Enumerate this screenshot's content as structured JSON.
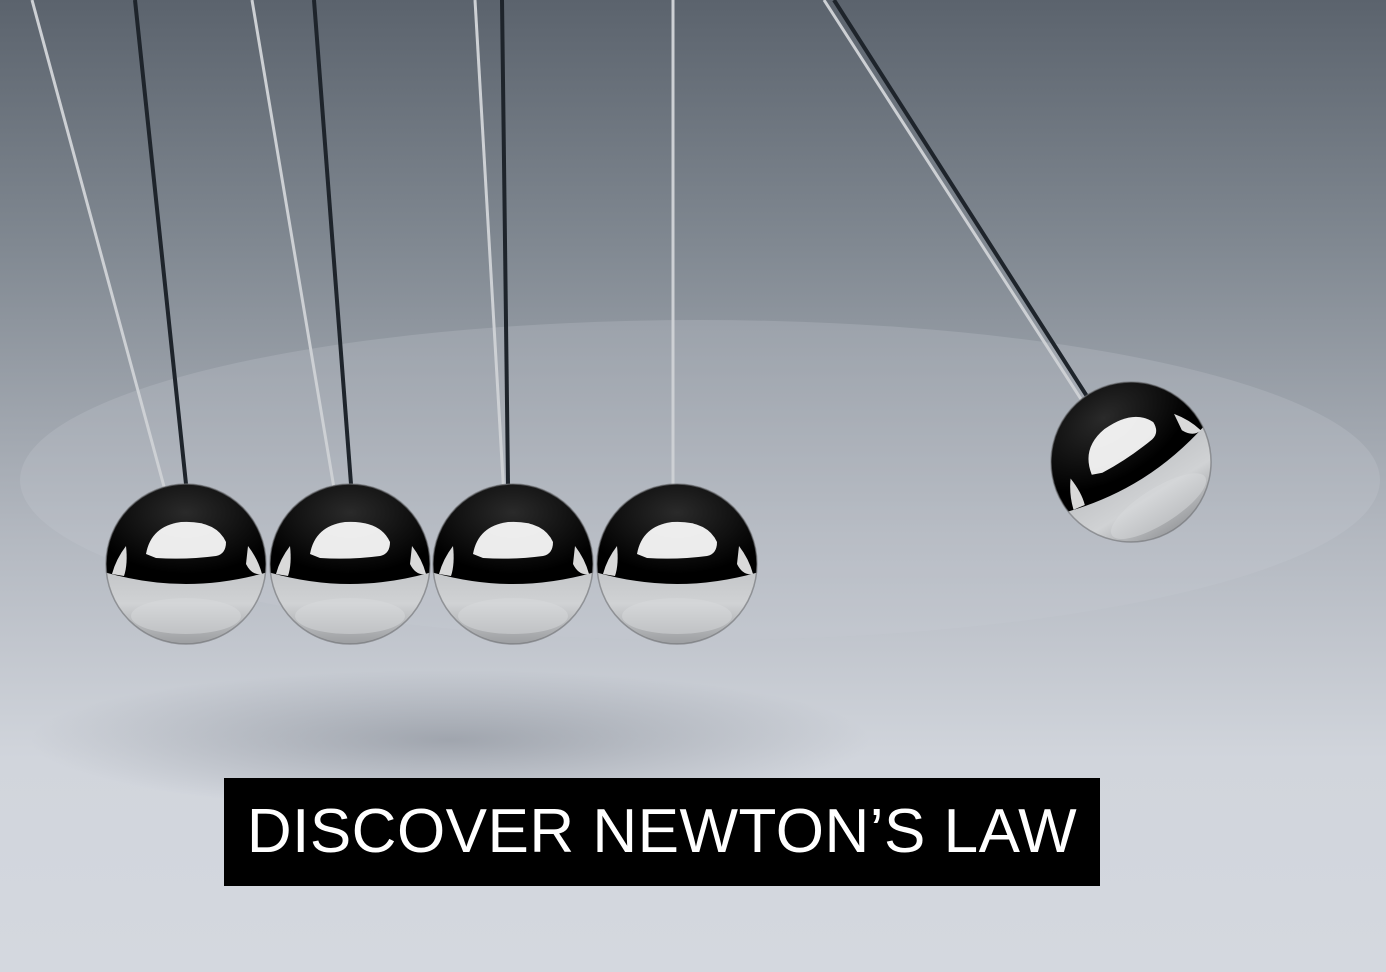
{
  "caption": {
    "text": "DISCOVER NEWTON’S LAW"
  },
  "colors": {
    "background_top": "#5d6670",
    "background_bottom": "#d3d7de",
    "caption_bg": "#000000",
    "caption_text": "#ffffff",
    "dark_string": "#1e242b",
    "light_string": "#c9ccd0"
  }
}
